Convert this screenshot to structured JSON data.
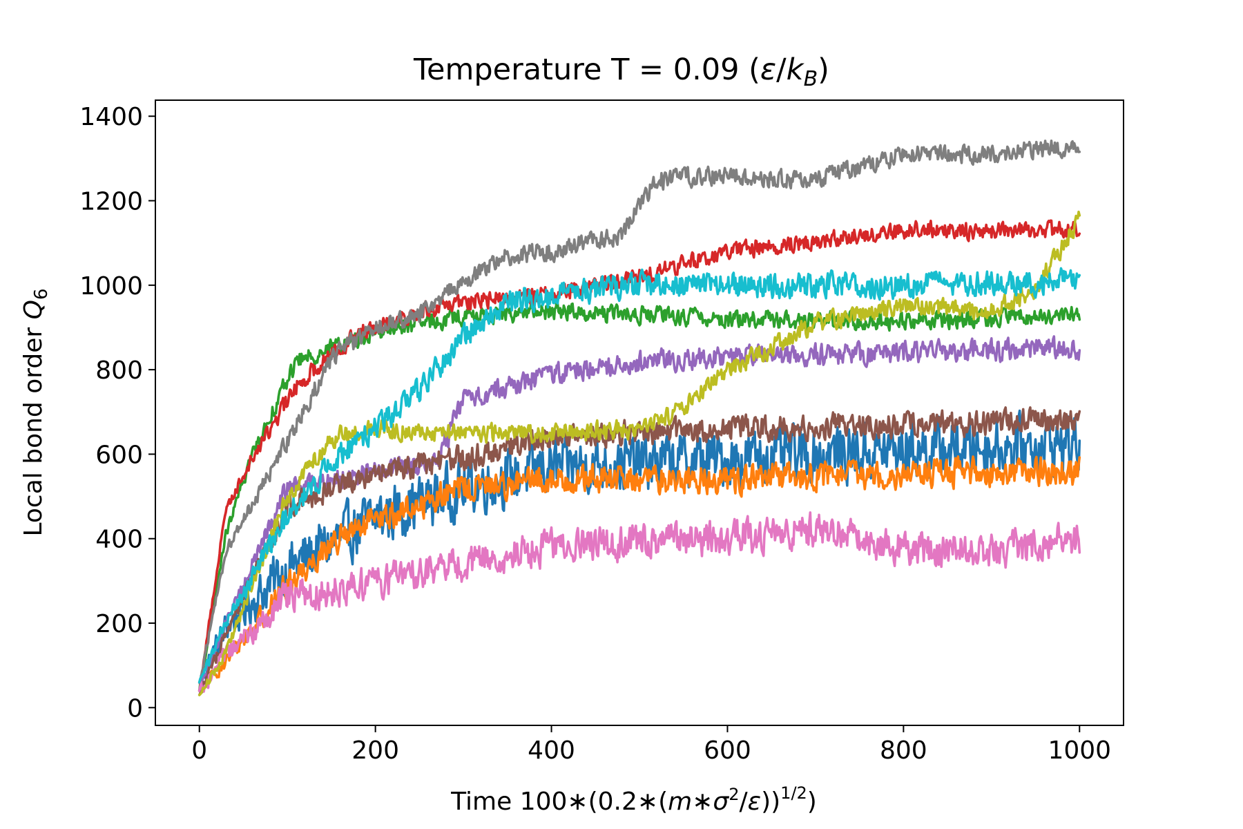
{
  "chart_data": {
    "type": "line",
    "title": {
      "prefix": "Temperature T = 0.09 (",
      "epsilon": "ε",
      "slash": "/",
      "k": "k",
      "k_sub": "B",
      "suffix": ")"
    },
    "xlabel": {
      "time": "Time 100",
      "star1": "∗",
      "open1": "(0.2",
      "star2": "∗",
      "open2": "(",
      "m": "m",
      "star3": "∗",
      "sigma": "σ",
      "sq": "2",
      "slash": "/",
      "eps": "ε",
      "close": "))",
      "exp": "1/2",
      "tail": ")"
    },
    "ylabel": {
      "text": "Local bond order ",
      "q": "Q",
      "q_sub": "6"
    },
    "xlim": [
      -50,
      1050
    ],
    "ylim": [
      -42,
      1438
    ],
    "xticks": [
      "0",
      "200",
      "400",
      "600",
      "800",
      "1000"
    ],
    "yticks": [
      "0",
      "200",
      "400",
      "600",
      "800",
      "1000",
      "1200",
      "1400"
    ],
    "legend": "none",
    "grid": false,
    "series": [
      {
        "color": "#1f77b4",
        "noise": 90,
        "knots": [
          [
            0,
            60
          ],
          [
            30,
            190
          ],
          [
            100,
            330
          ],
          [
            200,
            450
          ],
          [
            300,
            520
          ],
          [
            400,
            570
          ],
          [
            600,
            590
          ],
          [
            800,
            610
          ],
          [
            1000,
            625
          ]
        ]
      },
      {
        "color": "#ff7f0e",
        "noise": 45,
        "knots": [
          [
            0,
            40
          ],
          [
            30,
            110
          ],
          [
            100,
            290
          ],
          [
            150,
            390
          ],
          [
            200,
            440
          ],
          [
            300,
            520
          ],
          [
            400,
            540
          ],
          [
            600,
            540
          ],
          [
            800,
            555
          ],
          [
            1000,
            560
          ]
        ]
      },
      {
        "color": "#2ca02c",
        "noise": 28,
        "knots": [
          [
            0,
            40
          ],
          [
            30,
            410
          ],
          [
            60,
            600
          ],
          [
            110,
            820
          ],
          [
            150,
            850
          ],
          [
            200,
            890
          ],
          [
            300,
            925
          ],
          [
            400,
            940
          ],
          [
            600,
            920
          ],
          [
            800,
            915
          ],
          [
            1000,
            930
          ]
        ]
      },
      {
        "color": "#d62728",
        "noise": 28,
        "knots": [
          [
            0,
            40
          ],
          [
            30,
            470
          ],
          [
            60,
            590
          ],
          [
            110,
            760
          ],
          [
            150,
            840
          ],
          [
            200,
            910
          ],
          [
            300,
            960
          ],
          [
            400,
            980
          ],
          [
            500,
            1020
          ],
          [
            600,
            1080
          ],
          [
            800,
            1130
          ],
          [
            1000,
            1130
          ]
        ]
      },
      {
        "color": "#9467bd",
        "noise": 35,
        "knots": [
          [
            0,
            40
          ],
          [
            30,
            200
          ],
          [
            100,
            520
          ],
          [
            200,
            560
          ],
          [
            270,
            580
          ],
          [
            300,
            730
          ],
          [
            400,
            790
          ],
          [
            500,
            820
          ],
          [
            600,
            830
          ],
          [
            800,
            840
          ],
          [
            1000,
            850
          ]
        ]
      },
      {
        "color": "#8c564b",
        "noise": 40,
        "knots": [
          [
            0,
            30
          ],
          [
            30,
            170
          ],
          [
            100,
            480
          ],
          [
            200,
            560
          ],
          [
            300,
            590
          ],
          [
            400,
            640
          ],
          [
            600,
            660
          ],
          [
            800,
            670
          ],
          [
            1000,
            680
          ]
        ]
      },
      {
        "color": "#e377c2",
        "noise": 55,
        "knots": [
          [
            0,
            40
          ],
          [
            30,
            120
          ],
          [
            100,
            260
          ],
          [
            200,
            300
          ],
          [
            300,
            340
          ],
          [
            400,
            380
          ],
          [
            600,
            400
          ],
          [
            700,
            420
          ],
          [
            800,
            380
          ],
          [
            900,
            370
          ],
          [
            1000,
            400
          ]
        ]
      },
      {
        "color": "#7f7f7f",
        "noise": 30,
        "knots": [
          [
            0,
            60
          ],
          [
            30,
            370
          ],
          [
            100,
            630
          ],
          [
            150,
            830
          ],
          [
            200,
            900
          ],
          [
            250,
            930
          ],
          [
            300,
            1010
          ],
          [
            350,
            1070
          ],
          [
            400,
            1080
          ],
          [
            480,
            1120
          ],
          [
            520,
            1250
          ],
          [
            600,
            1260
          ],
          [
            700,
            1250
          ],
          [
            800,
            1310
          ],
          [
            900,
            1310
          ],
          [
            1000,
            1330
          ]
        ]
      },
      {
        "color": "#bcbd22",
        "noise": 30,
        "knots": [
          [
            0,
            30
          ],
          [
            30,
            130
          ],
          [
            100,
            500
          ],
          [
            150,
            640
          ],
          [
            200,
            660
          ],
          [
            300,
            650
          ],
          [
            400,
            650
          ],
          [
            500,
            660
          ],
          [
            550,
            710
          ],
          [
            600,
            800
          ],
          [
            650,
            850
          ],
          [
            700,
            910
          ],
          [
            800,
            950
          ],
          [
            900,
            940
          ],
          [
            950,
            990
          ],
          [
            1000,
            1160
          ]
        ]
      },
      {
        "color": "#17becf",
        "noise": 40,
        "knots": [
          [
            0,
            60
          ],
          [
            30,
            200
          ],
          [
            100,
            450
          ],
          [
            150,
            580
          ],
          [
            200,
            660
          ],
          [
            250,
            750
          ],
          [
            300,
            880
          ],
          [
            350,
            960
          ],
          [
            400,
            980
          ],
          [
            500,
            1000
          ],
          [
            800,
            1000
          ],
          [
            1000,
            1010
          ]
        ]
      }
    ]
  }
}
